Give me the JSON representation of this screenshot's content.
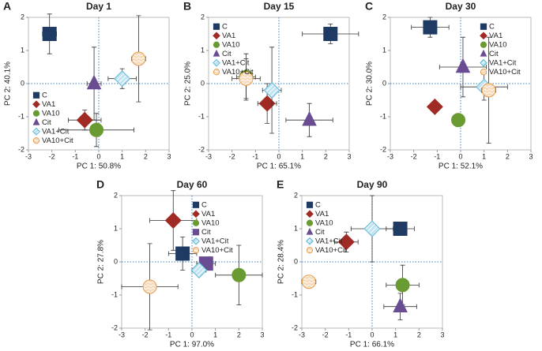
{
  "chart_data": [
    {
      "type": "scatter",
      "panel": "A",
      "title": "Day 1",
      "x_label": "PC 1: 50.8%",
      "y_label": "PC 2: 40.1%",
      "xlim": [
        -3,
        3
      ],
      "ylim": [
        -2,
        2
      ],
      "xticks": [
        -3,
        -2,
        -1,
        0,
        1,
        2,
        3
      ],
      "yticks": [
        -2,
        -1,
        0,
        1,
        2
      ],
      "legend": "lower left",
      "series": [
        {
          "name": "C",
          "color": "#1f3b63",
          "marker": "square",
          "x": [
            -2.1
          ],
          "values": [
            1.5
          ],
          "xerr": [
            0.3
          ],
          "yerr": [
            0.6
          ]
        },
        {
          "name": "VA1",
          "color": "#a02b25",
          "marker": "diamond",
          "x": [
            -0.6
          ],
          "values": [
            -1.1
          ],
          "xerr": [
            0.7
          ],
          "yerr": [
            0.3
          ]
        },
        {
          "name": "VA10",
          "color": "#6a9a32",
          "marker": "circle",
          "x": [
            -0.1
          ],
          "values": [
            -1.4
          ],
          "xerr": [
            1.6
          ],
          "yerr": [
            0.5
          ]
        },
        {
          "name": "Cit",
          "color": "#6a4c93",
          "marker": "triangle",
          "x": [
            -0.2
          ],
          "values": [
            0.0
          ],
          "xerr": [
            0.3
          ],
          "yerr": [
            1.1
          ]
        },
        {
          "name": "VA1+Cit",
          "color": "#bfe3f2",
          "marker": "diamond-open",
          "x": [
            1.0
          ],
          "values": [
            0.15
          ],
          "xerr": [
            0.6
          ],
          "yerr": [
            0.3
          ]
        },
        {
          "name": "VA10+Cit",
          "color": "#f6d9b8",
          "marker": "circle-open",
          "x": [
            1.7
          ],
          "values": [
            0.75
          ],
          "xerr": [
            0.3
          ],
          "yerr": [
            1.3
          ]
        }
      ]
    },
    {
      "type": "scatter",
      "panel": "B",
      "title": "Day 15",
      "x_label": "PC 1: 65.1%",
      "y_label": "PC 2: 25.0%",
      "xlim": [
        -3,
        3
      ],
      "ylim": [
        -2,
        2
      ],
      "xticks": [
        -3,
        -2,
        -1,
        0,
        1,
        2,
        3
      ],
      "yticks": [
        -2,
        -1,
        0,
        1,
        2
      ],
      "legend": "upper left",
      "series": [
        {
          "name": "C",
          "color": "#1f3b63",
          "marker": "square",
          "x": [
            2.2
          ],
          "values": [
            1.5
          ],
          "xerr": [
            1.2
          ],
          "yerr": [
            0.3
          ]
        },
        {
          "name": "VA1",
          "color": "#a02b25",
          "marker": "diamond",
          "x": [
            -0.5
          ],
          "values": [
            -0.6
          ],
          "xerr": [
            0.4
          ],
          "yerr": [
            0.6
          ]
        },
        {
          "name": "VA10",
          "color": "#6a9a32",
          "marker": "circle",
          "x": [
            -1.4
          ],
          "values": [
            0.2
          ],
          "xerr": [
            0.4
          ],
          "yerr": [
            0.7
          ]
        },
        {
          "name": "Cit",
          "color": "#6a4c93",
          "marker": "triangle",
          "x": [
            1.3
          ],
          "values": [
            -1.1
          ],
          "xerr": [
            1.0
          ],
          "yerr": [
            0.5
          ]
        },
        {
          "name": "VA1+Cit",
          "color": "#bfe3f2",
          "marker": "diamond-open",
          "x": [
            -0.3
          ],
          "values": [
            -0.2
          ],
          "xerr": [
            0.4
          ],
          "yerr": [
            1.3
          ]
        },
        {
          "name": "VA10+Cit",
          "color": "#f6d9b8",
          "marker": "circle-open",
          "x": [
            -1.4
          ],
          "values": [
            0.15
          ],
          "xerr": [
            0.6
          ],
          "yerr": [
            0.6
          ]
        }
      ]
    },
    {
      "type": "scatter",
      "panel": "C",
      "title": "Day 30",
      "x_label": "PC 1: 52.1%",
      "y_label": "PC 2: 30.0%",
      "xlim": [
        -3,
        3
      ],
      "ylim": [
        -2,
        2
      ],
      "xticks": [
        -3,
        -2,
        -1,
        0,
        1,
        2,
        3
      ],
      "yticks": [
        -2,
        -1,
        0,
        1,
        2
      ],
      "legend": "upper right",
      "series": [
        {
          "name": "C",
          "color": "#1f3b63",
          "marker": "square",
          "x": [
            -1.3
          ],
          "values": [
            1.7
          ],
          "xerr": [
            0.8
          ],
          "yerr": [
            0.3
          ]
        },
        {
          "name": "VA1",
          "color": "#a02b25",
          "marker": "diamond",
          "x": [
            -1.1
          ],
          "values": [
            -0.7
          ],
          "xerr": [
            0.1
          ],
          "yerr": [
            0.1
          ]
        },
        {
          "name": "VA10",
          "color": "#6a9a32",
          "marker": "circle",
          "x": [
            -0.1
          ],
          "values": [
            -1.1
          ],
          "xerr": [
            0.1
          ],
          "yerr": [
            0.1
          ]
        },
        {
          "name": "Cit",
          "color": "#6a4c93",
          "marker": "triangle",
          "x": [
            0.1
          ],
          "values": [
            0.5
          ],
          "xerr": [
            1.0
          ],
          "yerr": [
            0.9
          ]
        },
        {
          "name": "VA1+Cit",
          "color": "#bfe3f2",
          "marker": "diamond-open",
          "x": [
            1.0
          ],
          "values": [
            -0.1
          ],
          "xerr": [
            1.0
          ],
          "yerr": [
            0.4
          ]
        },
        {
          "name": "VA10+Cit",
          "color": "#f6d9b8",
          "marker": "circle-open",
          "x": [
            1.2
          ],
          "values": [
            -0.2
          ],
          "xerr": [
            0.3
          ],
          "yerr": [
            1.6
          ]
        }
      ]
    },
    {
      "type": "scatter",
      "panel": "D",
      "title": "Day 60",
      "x_label": "PC 1: 97.0%",
      "y_label": "PC 2: 27.8%",
      "xlim": [
        -3,
        3
      ],
      "ylim": [
        -2,
        2
      ],
      "xticks": [
        -3,
        -2,
        -1,
        0,
        1,
        2,
        3
      ],
      "yticks": [
        -2,
        -1,
        0,
        1,
        2
      ],
      "legend": "upper right",
      "series": [
        {
          "name": "C",
          "color": "#1f3b63",
          "marker": "square",
          "x": [
            -0.4
          ],
          "values": [
            0.25
          ],
          "xerr": [
            0.6
          ],
          "yerr": [
            0.5
          ]
        },
        {
          "name": "VA1",
          "color": "#a02b25",
          "marker": "diamond",
          "x": [
            -0.8
          ],
          "values": [
            1.25
          ],
          "xerr": [
            1.0
          ],
          "yerr": [
            0.9
          ]
        },
        {
          "name": "VA10",
          "color": "#6a9a32",
          "marker": "circle",
          "x": [
            2.0
          ],
          "values": [
            -0.4
          ],
          "xerr": [
            1.0
          ],
          "yerr": [
            0.9
          ]
        },
        {
          "name": "Cit",
          "color": "#6a4c93",
          "marker": "square",
          "x": [
            0.6
          ],
          "values": [
            -0.05
          ],
          "xerr": [
            0.4
          ],
          "yerr": [
            0.1
          ]
        },
        {
          "name": "VA1+Cit",
          "color": "#bfe3f2",
          "marker": "diamond-open",
          "x": [
            0.3
          ],
          "values": [
            -0.25
          ],
          "xerr": [
            0.3
          ],
          "yerr": [
            0.1
          ]
        },
        {
          "name": "VA10+Cit",
          "color": "#f6d9b8",
          "marker": "circle-open",
          "x": [
            -1.8
          ],
          "values": [
            -0.75
          ],
          "xerr": [
            1.2
          ],
          "yerr": [
            1.3
          ]
        }
      ]
    },
    {
      "type": "scatter",
      "panel": "E",
      "title": "Day 90",
      "x_label": "PC 1: 66.1%",
      "y_label": "PC 2: 28.4%",
      "xlim": [
        -3,
        3
      ],
      "ylim": [
        -2,
        2
      ],
      "xticks": [
        -3,
        -2,
        -1,
        0,
        1,
        2,
        3
      ],
      "yticks": [
        -2,
        -1,
        0,
        1,
        2
      ],
      "legend": "upper left",
      "series": [
        {
          "name": "C",
          "color": "#1f3b63",
          "marker": "square",
          "x": [
            1.2
          ],
          "values": [
            1.0
          ],
          "xerr": [
            0.6
          ],
          "yerr": [
            0.2
          ]
        },
        {
          "name": "VA1",
          "color": "#a02b25",
          "marker": "diamond",
          "x": [
            -1.1
          ],
          "values": [
            0.6
          ],
          "xerr": [
            0.5
          ],
          "yerr": [
            0.3
          ]
        },
        {
          "name": "VA10",
          "color": "#6a9a32",
          "marker": "circle",
          "x": [
            1.3
          ],
          "values": [
            -0.7
          ],
          "xerr": [
            0.7
          ],
          "yerr": [
            0.6
          ]
        },
        {
          "name": "Cit",
          "color": "#6a4c93",
          "marker": "triangle",
          "x": [
            1.2
          ],
          "values": [
            -1.35
          ],
          "xerr": [
            0.7
          ],
          "yerr": [
            0.4
          ]
        },
        {
          "name": "VA1+Cit",
          "color": "#bfe3f2",
          "marker": "diamond-open",
          "x": [
            0.0
          ],
          "values": [
            1.0
          ],
          "xerr": [
            0.9
          ],
          "yerr": [
            1.0
          ]
        },
        {
          "name": "VA10+Cit",
          "color": "#f6d9b8",
          "marker": "circle-open",
          "x": [
            -2.7
          ],
          "values": [
            -0.6
          ],
          "xerr": [
            0.3
          ],
          "yerr": [
            0.1
          ]
        }
      ]
    }
  ]
}
